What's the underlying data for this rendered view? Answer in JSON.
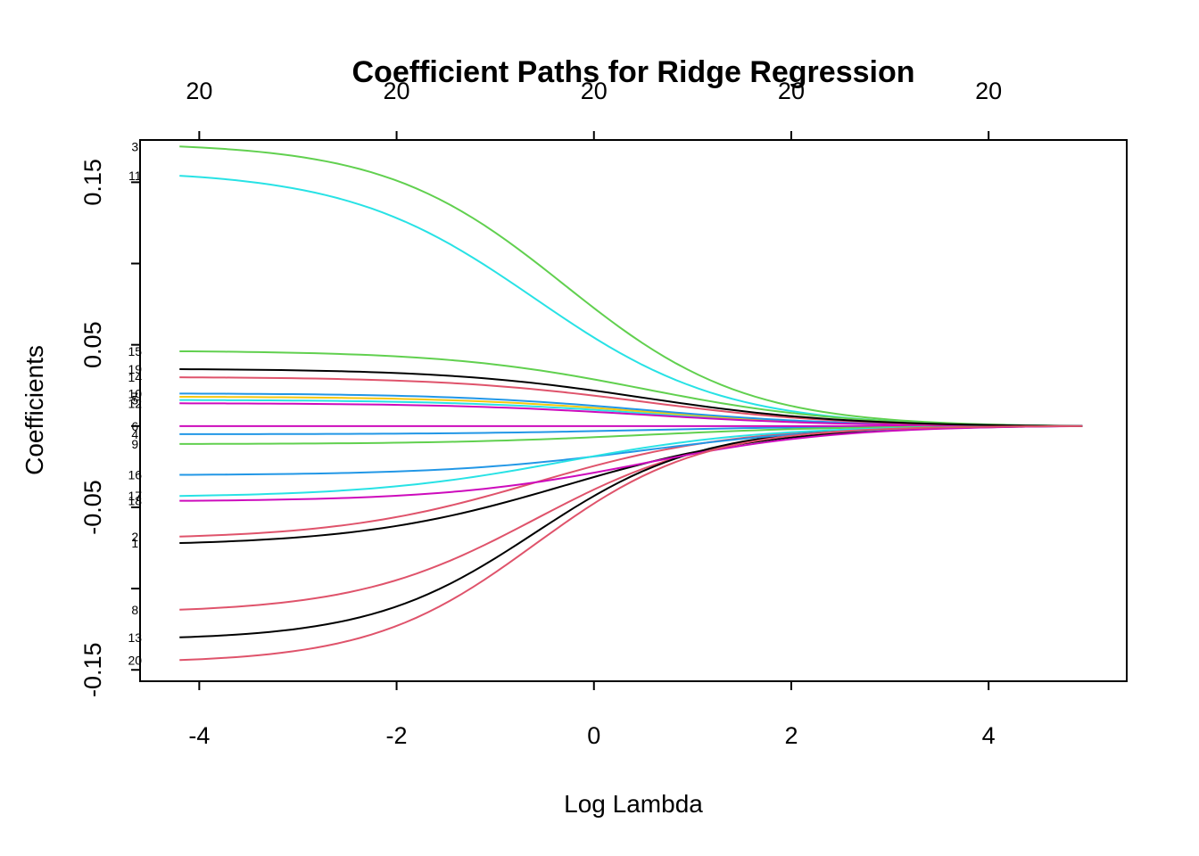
{
  "chart_data": {
    "type": "line",
    "title": "Coefficient Paths for Ridge Regression",
    "xlabel": "Log Lambda",
    "ylabel": "Coefficients",
    "xlim": [
      -4.6,
      5.4
    ],
    "ylim": [
      -0.157,
      0.176
    ],
    "x_ticks": [
      -4,
      -2,
      0,
      2,
      4
    ],
    "y_ticks": [
      -0.15,
      -0.1,
      -0.05,
      0.0,
      0.05,
      0.1,
      0.15
    ],
    "y_tick_labels": [
      "-0.15",
      "",
      "-0.05",
      "",
      "0.05",
      "",
      "0.15"
    ],
    "top_ticks": [
      -4,
      -2,
      0,
      2,
      4
    ],
    "top_tick_labels": [
      "20",
      "20",
      "20",
      "20",
      "20"
    ],
    "grid": false,
    "legend": "none",
    "x_start": -4.2,
    "x_end": 4.95,
    "series": [
      {
        "name": "1",
        "start": -0.072,
        "mid": -0.3,
        "steep": 0.95,
        "color": "#000000"
      },
      {
        "name": "2",
        "start": -0.068,
        "mid": -0.6,
        "steep": 1.0,
        "color": "#DF536B"
      },
      {
        "name": "3",
        "start": 0.172,
        "mid": -0.3,
        "steep": 1.1,
        "color": "#61D04F"
      },
      {
        "name": "4",
        "start": -0.005,
        "mid": 0.5,
        "steep": 1.0,
        "color": "#2297E6"
      },
      {
        "name": "5",
        "start": 0.016,
        "mid": 0.5,
        "steep": 1.0,
        "color": "#28E2E5"
      },
      {
        "name": "6",
        "start": 0.0,
        "mid": 0.5,
        "steep": 1.0,
        "color": "#CD0BBC"
      },
      {
        "name": "7",
        "start": 0.018,
        "mid": 0.5,
        "steep": 1.0,
        "color": "#F5C710"
      },
      {
        "name": "8",
        "start": -0.113,
        "mid": -0.6,
        "steep": 1.1,
        "color": "#DF536B"
      },
      {
        "name": "9",
        "start": -0.011,
        "mid": 0.5,
        "steep": 1.0,
        "color": "#61D04F"
      },
      {
        "name": "10",
        "start": 0.02,
        "mid": 0.5,
        "steep": 1.0,
        "color": "#2297E6"
      },
      {
        "name": "11",
        "start": 0.154,
        "mid": -0.6,
        "steep": 1.05,
        "color": "#28E2E5"
      },
      {
        "name": "12",
        "start": 0.014,
        "mid": 0.5,
        "steep": 1.0,
        "color": "#CD0BBC"
      },
      {
        "name": "13",
        "start": -0.13,
        "mid": -0.6,
        "steep": 1.2,
        "color": "#000000"
      },
      {
        "name": "14",
        "start": 0.03,
        "mid": 0.5,
        "steep": 1.0,
        "color": "#DF536B"
      },
      {
        "name": "15",
        "start": 0.046,
        "mid": 0.5,
        "steep": 1.0,
        "color": "#61D04F"
      },
      {
        "name": "16",
        "start": -0.03,
        "mid": 0.5,
        "steep": 1.0,
        "color": "#2297E6"
      },
      {
        "name": "17",
        "start": -0.043,
        "mid": -0.3,
        "steep": 1.0,
        "color": "#28E2E5"
      },
      {
        "name": "18",
        "start": -0.046,
        "mid": 0.5,
        "steep": 1.0,
        "color": "#CD0BBC"
      },
      {
        "name": "19",
        "start": 0.035,
        "mid": 0.5,
        "steep": 1.0,
        "color": "#000000"
      },
      {
        "name": "20",
        "start": -0.144,
        "mid": -0.6,
        "steep": 1.2,
        "color": "#DF536B"
      }
    ]
  }
}
